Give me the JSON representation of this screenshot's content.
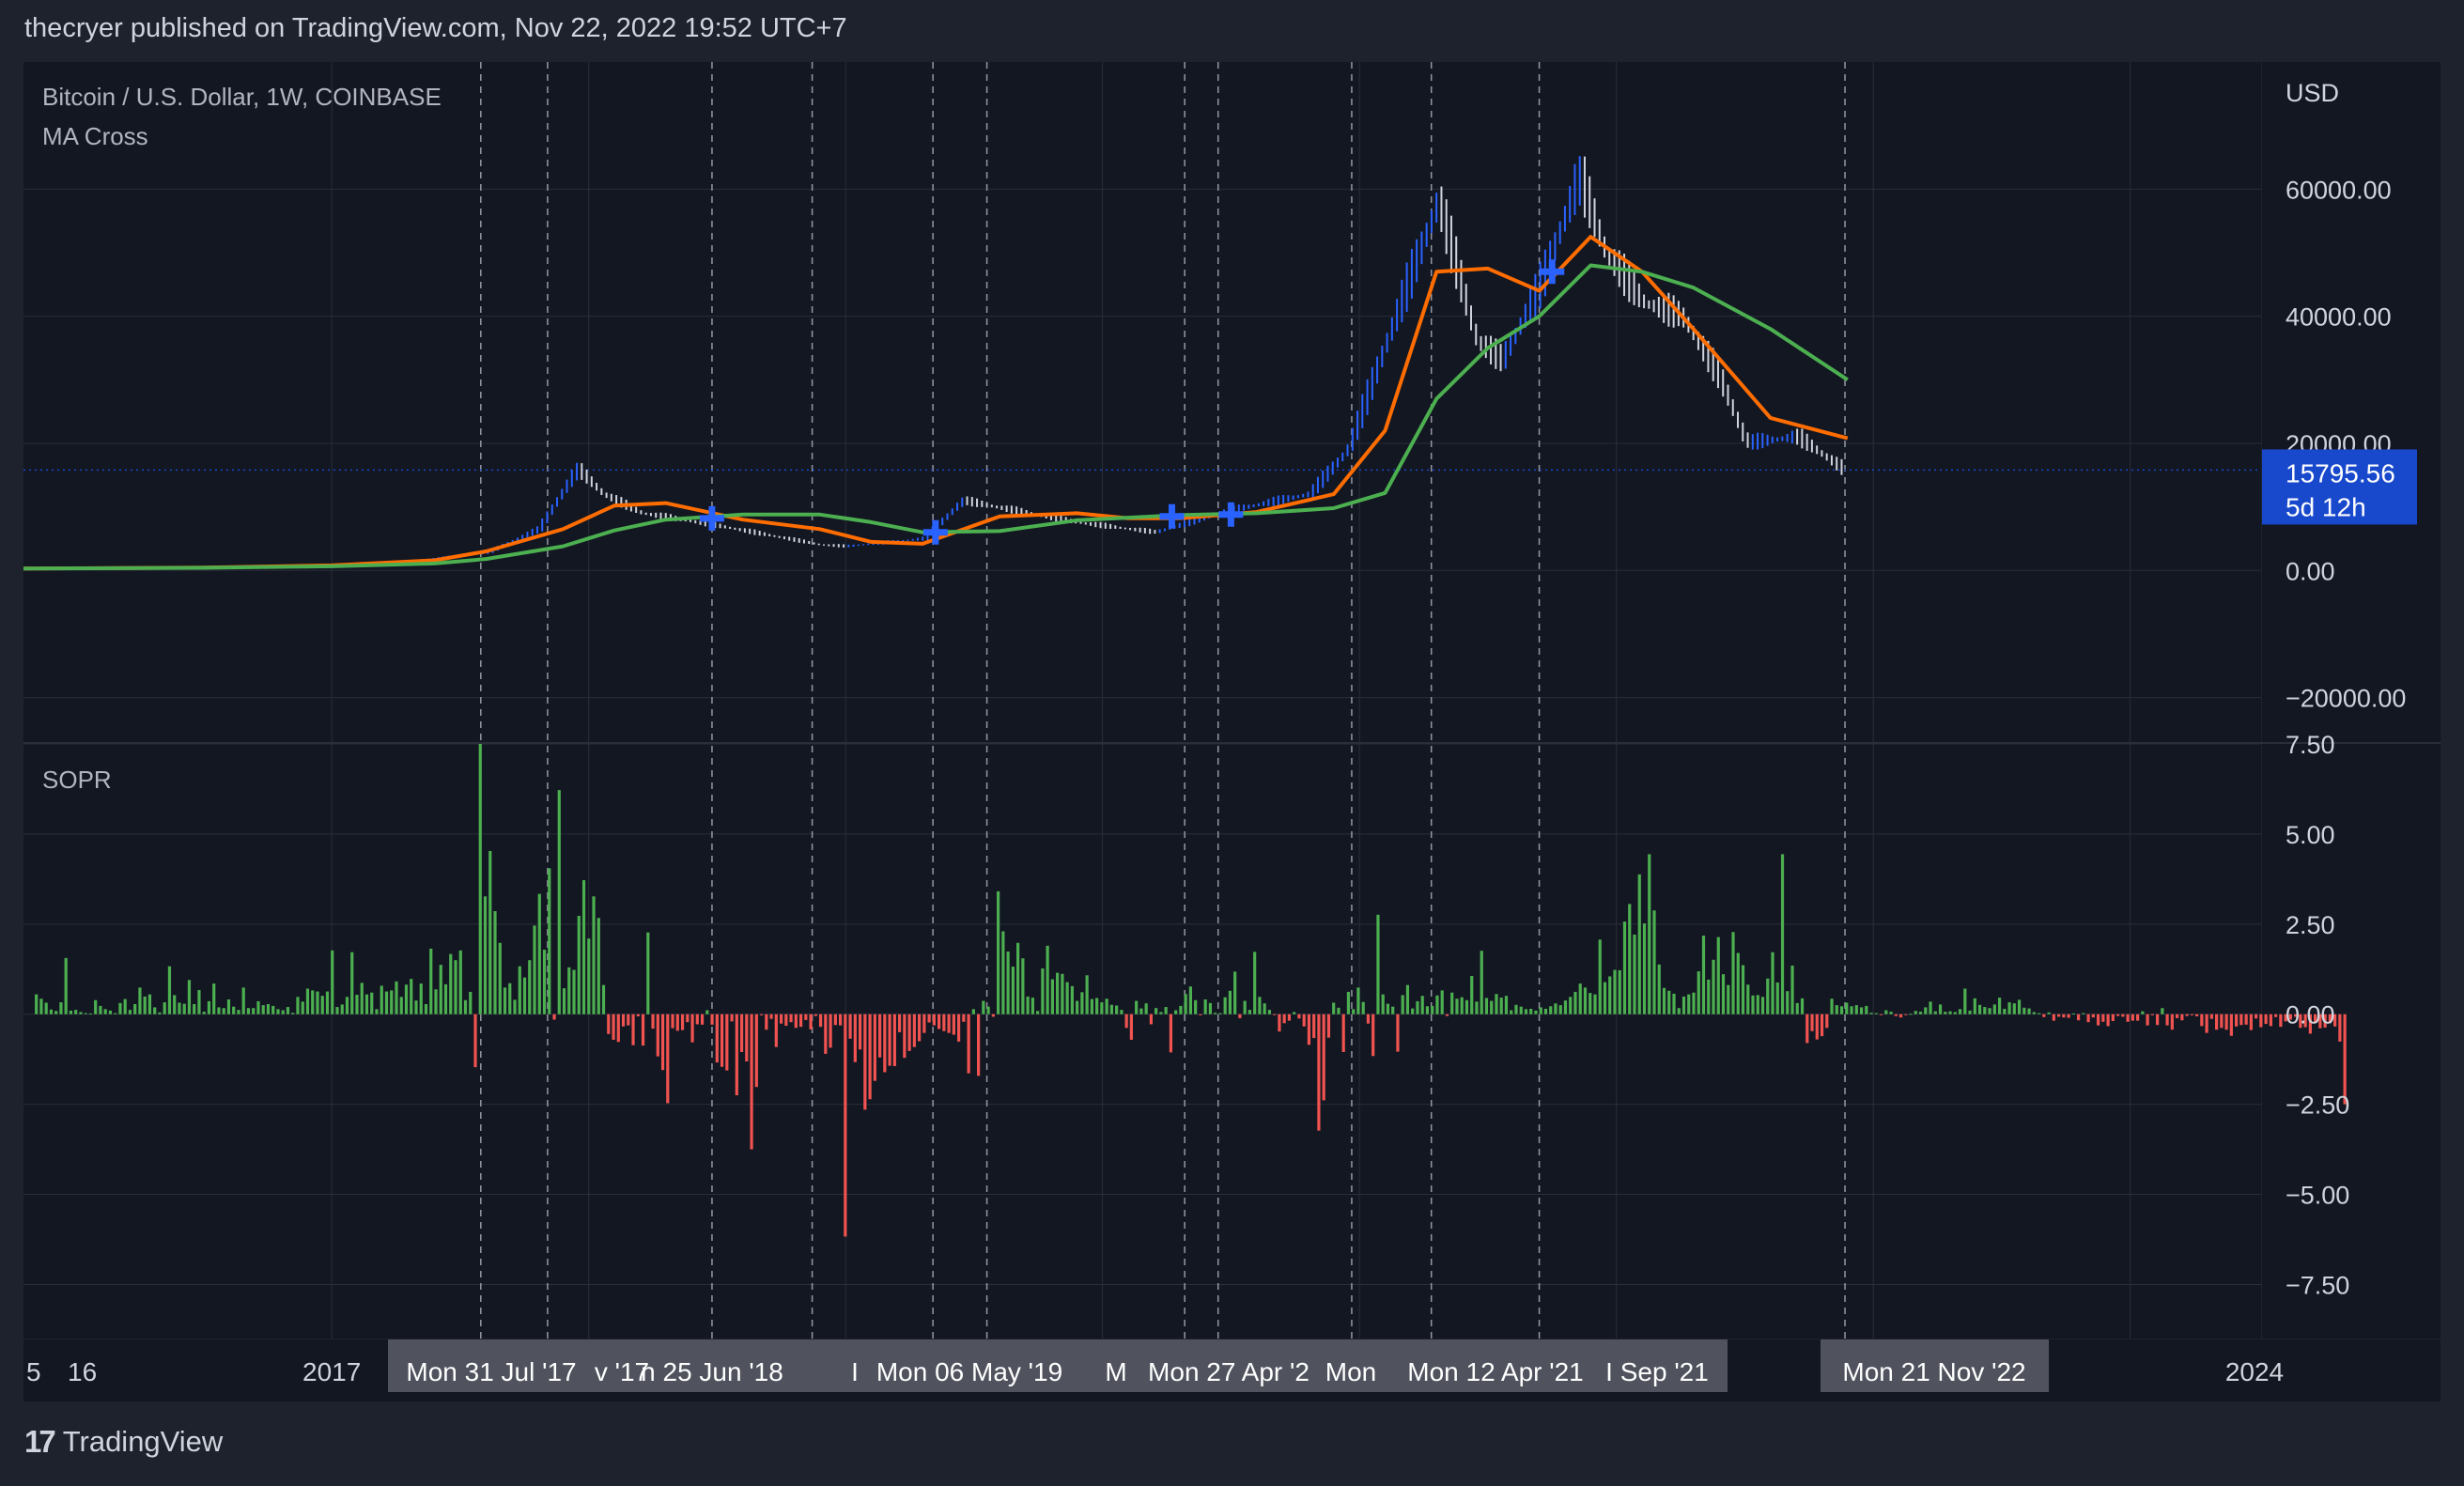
{
  "header": {
    "publish_line": "thecryer published on TradingView.com, Nov 22, 2022 19:52 UTC+7"
  },
  "footer": {
    "brand": "TradingView",
    "logo_glyph": "17"
  },
  "legends": {
    "symbol": "Bitcoin / U.S. Dollar, 1W, COINBASE",
    "indicator": "MA Cross",
    "sopr": "SOPR"
  },
  "colors": {
    "background": "#131722",
    "frame": "#1e222d",
    "grid": "#2a2e39",
    "up_candle": "#2962ff",
    "down_candle": "#d1d4dc",
    "fast_ma": "#ff6d00",
    "slow_ma": "#4caf50",
    "cross_marker": "#2962ff",
    "positive_bar": "#4caf50",
    "negative_bar": "#f05350",
    "price_label_bg": "#1848cc"
  },
  "price_axis": {
    "currency": "USD",
    "ticks": [
      "60000.00",
      "40000.00",
      "20000.00",
      "0.00",
      "−20000.00"
    ],
    "last_price": "15795.56",
    "countdown": "5d 12h"
  },
  "sopr_axis": {
    "ticks": [
      "7.50",
      "5.00",
      "2.50",
      "0.00",
      "−2.50",
      "−5.00",
      "−7.50"
    ]
  },
  "time_axis": {
    "plain_labels": [
      "5",
      "16",
      "2017",
      "2024"
    ],
    "highlighted_labels": [
      "Mon 31 Jul '17",
      "v '17",
      "n 25 Jun '18",
      "I",
      "Mon 06 May '19",
      "M",
      "Mon 27 Apr '2",
      "Mon",
      "Mon 12 Apr '21",
      "I Sep '21",
      "Mon 21 Nov '22"
    ]
  },
  "chart_data": [
    {
      "type": "line",
      "title": "Bitcoin / U.S. Dollar, 1W, COINBASE",
      "ylabel": "USD",
      "ylim": [
        -27000,
        80000
      ],
      "series": [
        {
          "name": "MA Cross",
          "x": [
            2015.8,
            2016.5,
            2017.0,
            2017.4,
            2017.6,
            2017.9,
            2018.1,
            2018.3,
            2018.6,
            2018.9,
            2019.1,
            2019.3,
            2019.6,
            2019.9,
            2020.1,
            2020.3,
            2020.6,
            2020.9,
            2021.1,
            2021.3,
            2021.5,
            2021.7,
            2021.9,
            2022.1,
            2022.3,
            2022.6,
            2022.9
          ],
          "values": [
            300,
            450,
            800,
            1600,
            3000,
            6500,
            10200,
            10600,
            8000,
            6500,
            4500,
            4200,
            8500,
            9000,
            8200,
            8200,
            9200,
            12000,
            22000,
            47000,
            47500,
            44000,
            52500,
            47000,
            38000,
            24000,
            20800
          ]
        },
        {
          "name": "",
          "x": [
            2015.8,
            2016.5,
            2017.0,
            2017.4,
            2017.6,
            2017.9,
            2018.1,
            2018.3,
            2018.6,
            2018.9,
            2019.1,
            2019.3,
            2019.6,
            2019.9,
            2020.1,
            2020.3,
            2020.6,
            2020.9,
            2021.1,
            2021.3,
            2021.5,
            2021.7,
            2021.9,
            2022.1,
            2022.3,
            2022.6,
            2022.9
          ],
          "values": [
            300,
            420,
            650,
            1100,
            1800,
            3800,
            6300,
            8000,
            8800,
            8800,
            7600,
            6000,
            6200,
            7900,
            8300,
            8700,
            9000,
            9800,
            12200,
            27000,
            35000,
            40000,
            48000,
            47000,
            44500,
            38000,
            30000
          ]
        }
      ],
      "price_points": {
        "x": [
          2015.8,
          2016.5,
          2017.0,
          2017.3,
          2017.6,
          2017.8,
          2017.95,
          2018.05,
          2018.2,
          2018.5,
          2018.9,
          2019.0,
          2019.3,
          2019.45,
          2019.7,
          2019.9,
          2020.2,
          2020.5,
          2020.8,
          2020.95,
          2021.1,
          2021.3,
          2021.45,
          2021.55,
          2021.7,
          2021.85,
          2021.95,
          2022.1,
          2022.25,
          2022.4,
          2022.5,
          2022.7,
          2022.88
        ],
        "values": [
          300,
          500,
          1000,
          1500,
          2800,
          6500,
          16000,
          12000,
          9000,
          7000,
          4000,
          3800,
          5000,
          11000,
          9000,
          7500,
          6000,
          9500,
          12000,
          19000,
          36000,
          58000,
          36000,
          33000,
          45000,
          62000,
          50000,
          42000,
          40000,
          30000,
          20000,
          21000,
          15795.56
        ]
      }
    },
    {
      "type": "bar",
      "title": "SOPR",
      "ylim": [
        -9,
        7.5
      ],
      "x_start": 2015.85,
      "x_step": 0.0192,
      "values": [
        0.55,
        0.43,
        0.32,
        0.13,
        0.09,
        0.33,
        1.56,
        0.1,
        0.12,
        0.06,
        0.03,
        0.02,
        0.39,
        0.23,
        0.14,
        0.1,
        0.03,
        0.31,
        0.42,
        0.12,
        0.28,
        0.74,
        0.49,
        0.55,
        0.19,
        0.05,
        0.33,
        1.33,
        0.53,
        0.32,
        0.29,
        0.95,
        0.28,
        0.67,
        0.07,
        0.36,
        0.85,
        0.19,
        0.17,
        0.41,
        0.21,
        0.12,
        0.74,
        0.17,
        0.17,
        0.36,
        0.25,
        0.28,
        0.23,
        0.14,
        0.11,
        0.2,
        0.04,
        0.48,
        0.35,
        0.71,
        0.66,
        0.63,
        0.51,
        0.63,
        1.77,
        0.2,
        0.27,
        0.48,
        1.72,
        0.54,
        0.87,
        0.55,
        0.6,
        0.14,
        0.79,
        0.63,
        0.66,
        0.91,
        0.48,
        0.82,
        0.98,
        0.38,
        0.85,
        0.28,
        1.82,
        0.69,
        1.37,
        0.83,
        1.67,
        1.5,
        1.77,
        0.39,
        0.62,
        -1.47,
        7.5,
        3.27,
        4.53,
        2.86,
        1.98,
        0.74,
        0.86,
        0.4,
        1.33,
        1.02,
        1.5,
        2.46,
        3.34,
        1.79,
        4.05,
        -0.15,
        6.22,
        0.72,
        1.3,
        1.23,
        2.73,
        3.72,
        2.1,
        3.27,
        2.67,
        0.81,
        -0.55,
        -0.71,
        -0.77,
        -0.34,
        -0.31,
        -0.86,
        -0.06,
        -0.87,
        2.27,
        -0.4,
        -1.17,
        -1.55,
        -2.47,
        -0.39,
        -0.46,
        -0.44,
        -0.22,
        -0.78,
        -0.28,
        -0.29,
        0.11,
        -0.29,
        -1.34,
        -1.46,
        -1.56,
        -0.2,
        -2.25,
        -1.05,
        -1.31,
        -3.75,
        -2.02,
        -0.03,
        -0.43,
        -0.13,
        -0.91,
        -0.26,
        -0.32,
        -0.22,
        -0.38,
        -0.35,
        -0.16,
        -0.42,
        -0.05,
        -0.35,
        -1.1,
        -0.93,
        -0.3,
        -0.31,
        -6.17,
        -0.68,
        -1.33,
        -0.98,
        -2.65,
        -2.36,
        -1.85,
        -1.2,
        -1.61,
        -1.43,
        -1.44,
        -0.5,
        -1.21,
        -1.02,
        -0.91,
        -0.75,
        -0.52,
        -0.23,
        -0.31,
        -0.41,
        -0.47,
        -0.52,
        -0.57,
        -0.76,
        -0.21,
        -1.64,
        0.14,
        -1.71,
        0.37,
        0.21,
        -0.07,
        3.41,
        2.3,
        1.74,
        1.32,
        1.98,
        1.55,
        0.49,
        0.46,
        0.09,
        1.27,
        1.9,
        0.97,
        1.15,
        1.12,
        0.89,
        0.78,
        0.37,
        0.61,
        1.08,
        0.42,
        0.45,
        0.33,
        0.43,
        0.26,
        0.24,
        0.12,
        -0.38,
        -0.71,
        0.37,
        0.16,
        0.3,
        -0.28,
        0.17,
        0.06,
        0.2,
        -1.06,
        0.11,
        0.23,
        0.56,
        0.77,
        0.39,
        -0.03,
        0.41,
        0.31,
        0.04,
        0.03,
        0.47,
        0.65,
        1.18,
        -0.11,
        0.37,
        0.12,
        1.73,
        0.48,
        0.3,
        0.12,
        -0.02,
        -0.48,
        -0.25,
        -0.18,
        0.06,
        -0.12,
        -0.34,
        -0.85,
        -0.66,
        -3.23,
        -2.39,
        -0.65,
        0.32,
        0.18,
        -1.05,
        0.62,
        0.14,
        0.74,
        0.34,
        -0.26,
        -1.16,
        2.76,
        0.55,
        0.29,
        0.21,
        -1.04,
        0.53,
        0.81,
        0.16,
        0.36,
        0.51,
        0.22,
        0.23,
        0.52,
        0.66,
        -0.05,
        0.6,
        0.43,
        0.47,
        0.39,
        1.06,
        0.35,
        1.76,
        0.45,
        0.37,
        0.56,
        0.46,
        0.51,
        0.11,
        0.26,
        0.21,
        0.14,
        0.15,
        0.1,
        0.19,
        0.15,
        0.22,
        0.3,
        0.25,
        0.38,
        0.48,
        0.62,
        0.85,
        0.74,
        0.59,
        0.55,
        2.07,
        0.89,
        1.05,
        1.23,
        1.22,
        2.57,
        3.06,
        2.21,
        3.88,
        2.52,
        4.44,
        2.88,
        1.38,
        0.73,
        0.65,
        0.57,
        0.17,
        0.49,
        0.55,
        0.6,
        1.19,
        2.18,
        0.96,
        1.51,
        2.14,
        1.11,
        0.81,
        2.28,
        1.7,
        1.36,
        0.82,
        0.52,
        0.53,
        0.48,
        0.99,
        1.72,
        0.88,
        4.44,
        0.64,
        1.35,
        0.31,
        0.44,
        -0.8,
        -0.47,
        -0.7,
        -0.61,
        -0.38,
        0.43,
        0.25,
        0.22,
        0.32,
        0.22,
        0.25,
        0.19,
        0.23,
        0.04,
        0.03,
        -0.02,
        0.11,
        0.07,
        -0.05,
        -0.09,
        -0.01,
        0.01,
        0.09,
        0.07,
        0.19,
        0.35,
        0.08,
        0.27,
        0.07,
        0.08,
        0.06,
        0.14,
        0.71,
        0.1,
        0.44,
        0.26,
        0.2,
        0.17,
        0.27,
        0.46,
        0.15,
        0.33,
        0.3,
        0.4,
        0.18,
        0.16,
        0.06,
        0.03,
        -0.08,
        0.05,
        -0.18,
        -0.07,
        -0.09,
        -0.1,
        0.02,
        -0.17,
        0.03,
        -0.22,
        -0.09,
        -0.31,
        -0.21,
        -0.33,
        -0.19,
        -0.05,
        -0.07,
        -0.21,
        -0.18,
        -0.18,
        0.08,
        -0.31,
        -0.03,
        -0.3,
        0.17,
        -0.31,
        -0.43,
        -0.11,
        -0.17,
        -0.05,
        -0.03,
        -0.06,
        -0.33,
        -0.52,
        -0.13,
        -0.43,
        -0.38,
        -0.43,
        -0.6,
        -0.34,
        -0.3,
        -0.29,
        -0.44,
        -0.12,
        -0.36,
        -0.27,
        -0.33,
        -0.08,
        -0.35,
        -0.2,
        -0.15,
        -0.07,
        -0.38,
        -0.36,
        -0.54,
        -0.22,
        -0.39,
        -0.37,
        -0.25,
        -0.34,
        -0.76,
        -2.5
      ]
    }
  ]
}
